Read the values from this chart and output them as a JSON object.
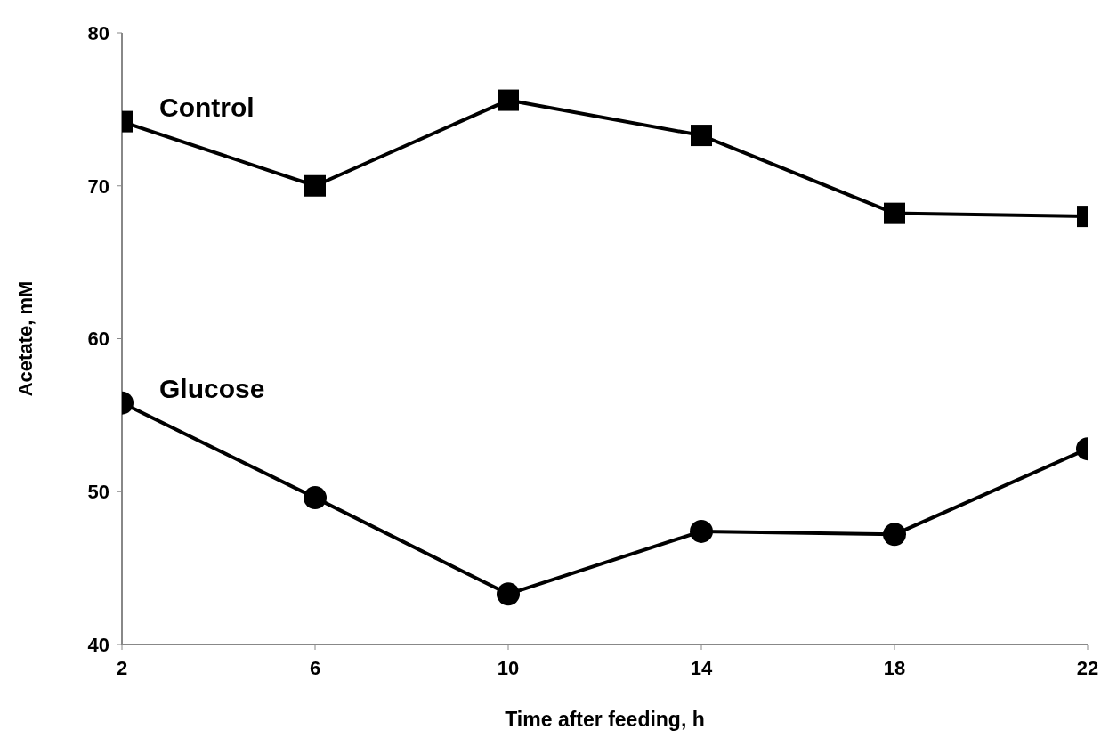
{
  "chart_data": {
    "type": "line",
    "xlabel": "Time after feeding, h",
    "ylabel": "Acetate, mM",
    "x": [
      2,
      6,
      10,
      14,
      18,
      22
    ],
    "series": [
      {
        "name": "Control",
        "color": "#000000",
        "marker": "square",
        "values": [
          74.2,
          70.0,
          75.6,
          73.3,
          68.2,
          68.0
        ]
      },
      {
        "name": "Glucose",
        "color": "#000000",
        "marker": "circle",
        "values": [
          55.8,
          49.6,
          43.3,
          47.4,
          47.2,
          52.8
        ]
      }
    ],
    "xlim": [
      2,
      22
    ],
    "xticks": [
      2,
      6,
      10,
      14,
      18,
      22
    ],
    "ylim": [
      40,
      80
    ],
    "yticks": [
      40,
      50,
      60,
      70,
      80
    ],
    "grid": false,
    "legend": false,
    "line_style": "solid"
  }
}
